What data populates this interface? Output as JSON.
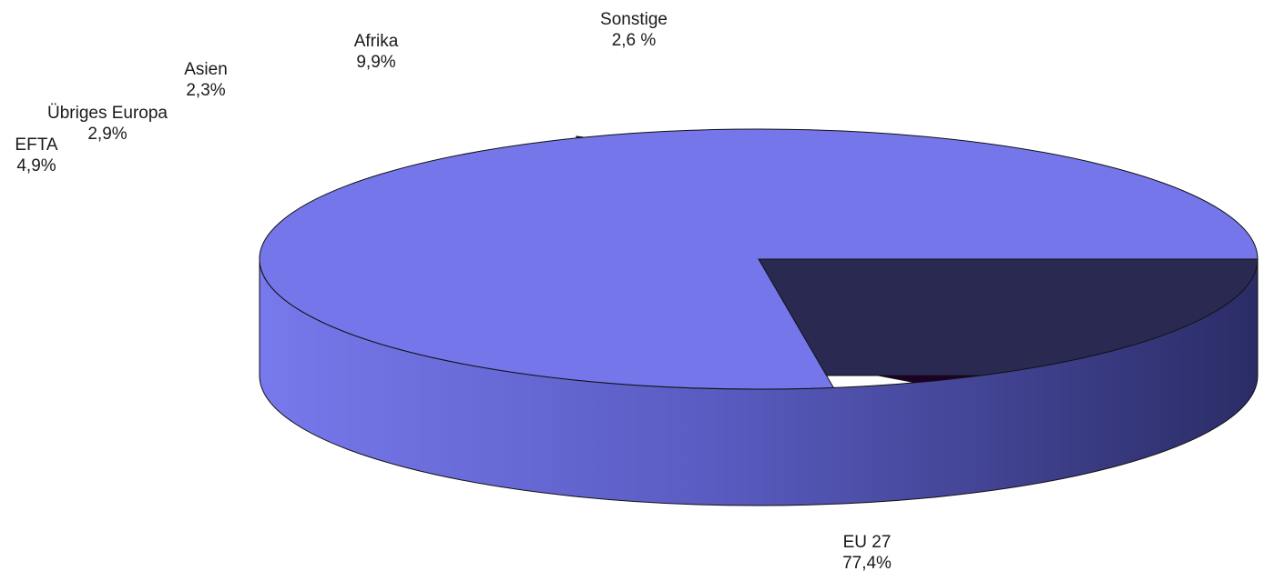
{
  "chart_data": {
    "type": "pie",
    "title": "",
    "categories": [
      "EU 27",
      "Sonstige",
      "Afrika",
      "Asien",
      "Übriges Europa",
      "EFTA"
    ],
    "values": [
      77.4,
      2.6,
      9.9,
      2.3,
      2.9,
      4.9
    ],
    "value_labels": [
      "77,4%",
      "2,6 %",
      "9,9%",
      "2,3%",
      "2,9%",
      "4,9%"
    ],
    "colors": [
      "#7476ea",
      "#ec7676",
      "#57006e",
      "#93d1d1",
      "#f1eeb3",
      "#8e2e58"
    ],
    "exploded": true,
    "style": "3d",
    "legend": "none",
    "start_angle_deg": 0
  }
}
